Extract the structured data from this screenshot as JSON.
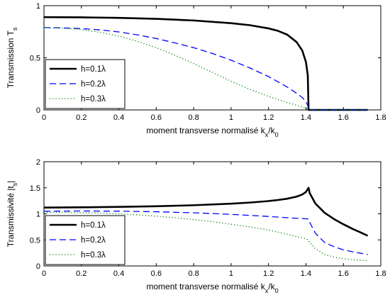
{
  "chart_data": [
    {
      "type": "line",
      "title": "",
      "xlabel": "moment transverse normalisé k_x/k_0",
      "ylabel": "Transmission T_s",
      "xlim": [
        0,
        1.8
      ],
      "ylim": [
        0,
        1
      ],
      "xticks": [
        "0",
        "0.2",
        "0.4",
        "0.6",
        "0.8",
        "1",
        "1.2",
        "1.4",
        "1.6",
        "1.8"
      ],
      "yticks": [
        "0",
        "0.5",
        "1"
      ],
      "grid": false,
      "legend_position": "bottom-left",
      "series": [
        {
          "name": "h=0.1λ",
          "style": "solid",
          "color": "#000000",
          "x": [
            0,
            0.2,
            0.4,
            0.6,
            0.8,
            1.0,
            1.1,
            1.2,
            1.25,
            1.3,
            1.35,
            1.38,
            1.4,
            1.41,
            1.414,
            1.42,
            1.5,
            1.6,
            1.73
          ],
          "y": [
            0.89,
            0.888,
            0.883,
            0.874,
            0.858,
            0.832,
            0.813,
            0.782,
            0.759,
            0.722,
            0.651,
            0.571,
            0.46,
            0.33,
            0,
            0,
            0,
            0,
            0
          ]
        },
        {
          "name": "h=0.2λ",
          "style": "dashed",
          "color": "#0000ff",
          "x": [
            0,
            0.1,
            0.2,
            0.3,
            0.4,
            0.5,
            0.6,
            0.7,
            0.8,
            0.9,
            1.0,
            1.1,
            1.2,
            1.25,
            1.3,
            1.35,
            1.38,
            1.4,
            1.41,
            1.414,
            1.42,
            1.5,
            1.6,
            1.73
          ],
          "y": [
            0.79,
            0.787,
            0.78,
            0.768,
            0.748,
            0.72,
            0.685,
            0.643,
            0.597,
            0.542,
            0.477,
            0.403,
            0.32,
            0.27,
            0.22,
            0.16,
            0.12,
            0.08,
            0.04,
            0,
            0,
            0,
            0,
            0
          ]
        },
        {
          "name": "h=0.3λ",
          "style": "dotted",
          "color": "#008000",
          "x": [
            0,
            0.1,
            0.2,
            0.3,
            0.4,
            0.5,
            0.6,
            0.7,
            0.8,
            0.9,
            1.0,
            1.1,
            1.2,
            1.3,
            1.35,
            1.4,
            1.414,
            1.42,
            1.5,
            1.6,
            1.73
          ],
          "y": [
            0.79,
            0.785,
            0.77,
            0.745,
            0.708,
            0.658,
            0.597,
            0.525,
            0.445,
            0.36,
            0.275,
            0.198,
            0.13,
            0.07,
            0.045,
            0.015,
            0,
            0,
            0,
            0,
            0
          ]
        }
      ]
    },
    {
      "type": "line",
      "title": "",
      "xlabel": "moment transverse normalisé k_x/k_0",
      "ylabel": "Transmissivité |t_s|",
      "xlim": [
        0,
        1.8
      ],
      "ylim": [
        0,
        2
      ],
      "xticks": [
        "0",
        "0.2",
        "0.4",
        "0.6",
        "0.8",
        "1",
        "1.2",
        "1.4",
        "1.6",
        "1.8"
      ],
      "yticks": [
        "0",
        "0.5",
        "1",
        "1.5",
        "2"
      ],
      "grid": false,
      "legend_position": "bottom-left",
      "series": [
        {
          "name": "h=0.1λ",
          "style": "solid",
          "color": "#000000",
          "x": [
            0,
            0.2,
            0.4,
            0.6,
            0.8,
            1.0,
            1.1,
            1.2,
            1.25,
            1.3,
            1.35,
            1.38,
            1.4,
            1.414,
            1.42,
            1.45,
            1.5,
            1.55,
            1.6,
            1.65,
            1.7,
            1.73
          ],
          "y": [
            1.12,
            1.125,
            1.133,
            1.145,
            1.165,
            1.195,
            1.216,
            1.245,
            1.265,
            1.29,
            1.33,
            1.37,
            1.42,
            1.5,
            1.4,
            1.2,
            1.02,
            0.9,
            0.8,
            0.71,
            0.63,
            0.58
          ]
        },
        {
          "name": "h=0.2λ",
          "style": "dashed",
          "color": "#0000ff",
          "x": [
            0,
            0.2,
            0.4,
            0.6,
            0.8,
            1.0,
            1.2,
            1.3,
            1.4,
            1.414,
            1.42,
            1.45,
            1.5,
            1.55,
            1.6,
            1.65,
            1.7,
            1.73
          ],
          "y": [
            1.05,
            1.055,
            1.05,
            1.04,
            1.02,
            0.99,
            0.95,
            0.925,
            0.905,
            0.9,
            0.84,
            0.63,
            0.45,
            0.37,
            0.31,
            0.27,
            0.24,
            0.22
          ]
        },
        {
          "name": "h=0.3λ",
          "style": "dotted",
          "color": "#008000",
          "x": [
            0,
            0.1,
            0.2,
            0.3,
            0.4,
            0.5,
            0.6,
            0.7,
            0.8,
            0.9,
            1.0,
            1.1,
            1.2,
            1.3,
            1.4,
            1.414,
            1.42,
            1.45,
            1.5,
            1.55,
            1.6,
            1.65,
            1.7,
            1.73
          ],
          "y": [
            1.03,
            1.03,
            1.02,
            1.015,
            1.0,
            0.98,
            0.955,
            0.925,
            0.89,
            0.85,
            0.8,
            0.75,
            0.69,
            0.61,
            0.52,
            0.5,
            0.45,
            0.33,
            0.22,
            0.17,
            0.14,
            0.12,
            0.11,
            0.1
          ]
        }
      ]
    }
  ]
}
